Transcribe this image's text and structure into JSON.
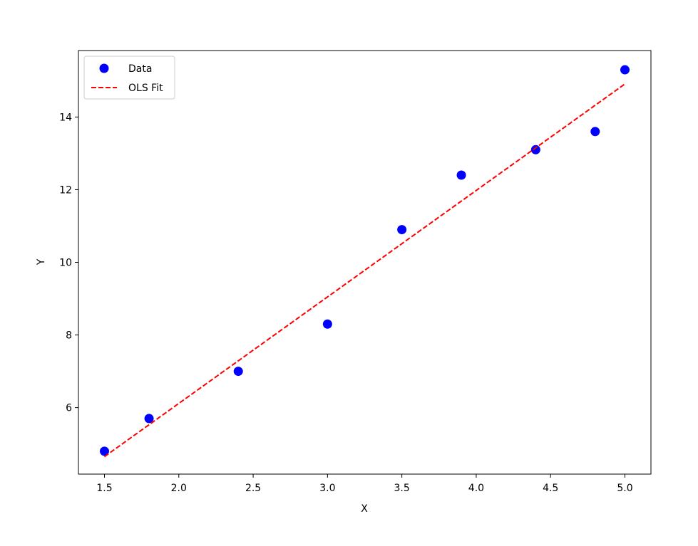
{
  "chart_data": {
    "type": "scatter",
    "xlabel": "X",
    "ylabel": "Y",
    "series": [
      {
        "name": "Data",
        "type": "scatter",
        "color": "#0000ff",
        "x": [
          1.5,
          1.8,
          2.4,
          3.0,
          3.5,
          3.9,
          4.4,
          4.8,
          5.0
        ],
        "values": [
          4.8,
          5.7,
          7.0,
          8.3,
          10.9,
          12.4,
          13.1,
          13.6,
          15.3
        ]
      },
      {
        "name": "OLS Fit",
        "type": "line",
        "color": "#ff0000",
        "dashed": true,
        "x": [
          1.5,
          5.0
        ],
        "values": [
          4.65,
          14.91
        ]
      }
    ],
    "xlim": [
      1.325,
      5.175
    ],
    "xticks": [
      1.5,
      {
        "value": 2,
        "label": "2.0"
      },
      2.5,
      {
        "value": 3,
        "label": "3.0"
      },
      3.5,
      {
        "value": 4,
        "label": "4.0"
      },
      4.5,
      {
        "value": 5,
        "label": "5.0"
      }
    ],
    "ylim": [
      4.17,
      15.83
    ],
    "yticks": [
      6,
      8,
      10,
      12,
      14
    ],
    "grid": false,
    "legend": "upper-left"
  }
}
